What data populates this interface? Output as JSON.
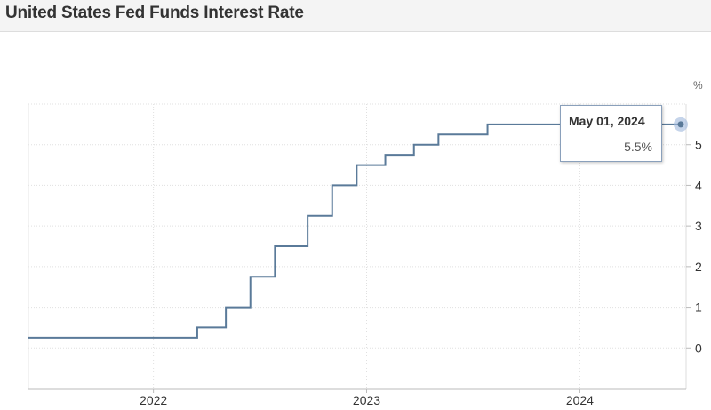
{
  "title": "United States Fed Funds Interest Rate",
  "unit_label": "%",
  "colors": {
    "line": "#5a7a99",
    "grid": "#e0e0e0",
    "header_bg": "#f4f4f4",
    "highlight": "#9fb8dc"
  },
  "tooltip": {
    "date": "May 01, 2024",
    "value": "5.5%"
  },
  "chart_data": {
    "type": "line",
    "step": true,
    "title": "United States Fed Funds Interest Rate",
    "xlabel": "",
    "ylabel": "%",
    "x_ticks": [
      "2022",
      "2023",
      "2024"
    ],
    "y_ticks": [
      "0",
      "1",
      "2",
      "3",
      "4",
      "5"
    ],
    "xlim": [
      "2021-06-01",
      "2024-07-01"
    ],
    "ylim": [
      -1,
      6
    ],
    "grid": true,
    "series": [
      {
        "x": [
          "2021-06-01",
          "2022-03-17",
          "2022-05-05",
          "2022-06-16",
          "2022-07-28",
          "2022-09-22",
          "2022-11-03",
          "2022-12-15",
          "2023-02-02",
          "2023-03-23",
          "2023-05-04",
          "2023-07-27",
          "2024-05-01"
        ],
        "values": [
          0.25,
          0.5,
          1.0,
          1.75,
          2.5,
          3.25,
          4.0,
          4.5,
          4.75,
          5.0,
          5.25,
          5.5,
          5.5
        ]
      }
    ]
  }
}
